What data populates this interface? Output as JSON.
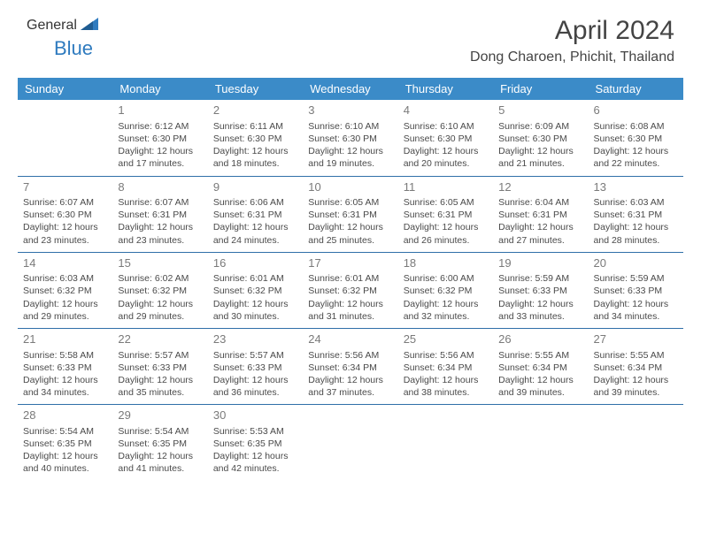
{
  "logo": {
    "text_general": "General",
    "text_blue": "Blue"
  },
  "header": {
    "month_title": "April 2024",
    "location": "Dong Charoen, Phichit, Thailand"
  },
  "colors": {
    "header_bg": "#3b8bc8",
    "header_text": "#ffffff",
    "row_border": "#2f6fa8",
    "body_text": "#4a4a4a",
    "daynum": "#7a7a7a",
    "page_bg": "#ffffff",
    "logo_general": "#5a5a5a",
    "logo_blue": "#2f7bbf"
  },
  "typography": {
    "month_title_fontsize": 30,
    "location_fontsize": 16,
    "weekday_fontsize": 13,
    "daynum_fontsize": 13,
    "cell_fontsize": 10.5
  },
  "weekdays": [
    "Sunday",
    "Monday",
    "Tuesday",
    "Wednesday",
    "Thursday",
    "Friday",
    "Saturday"
  ],
  "weeks": [
    [
      {
        "day": "",
        "sunrise": "",
        "sunset": "",
        "daylight": ""
      },
      {
        "day": "1",
        "sunrise": "Sunrise: 6:12 AM",
        "sunset": "Sunset: 6:30 PM",
        "daylight": "Daylight: 12 hours and 17 minutes."
      },
      {
        "day": "2",
        "sunrise": "Sunrise: 6:11 AM",
        "sunset": "Sunset: 6:30 PM",
        "daylight": "Daylight: 12 hours and 18 minutes."
      },
      {
        "day": "3",
        "sunrise": "Sunrise: 6:10 AM",
        "sunset": "Sunset: 6:30 PM",
        "daylight": "Daylight: 12 hours and 19 minutes."
      },
      {
        "day": "4",
        "sunrise": "Sunrise: 6:10 AM",
        "sunset": "Sunset: 6:30 PM",
        "daylight": "Daylight: 12 hours and 20 minutes."
      },
      {
        "day": "5",
        "sunrise": "Sunrise: 6:09 AM",
        "sunset": "Sunset: 6:30 PM",
        "daylight": "Daylight: 12 hours and 21 minutes."
      },
      {
        "day": "6",
        "sunrise": "Sunrise: 6:08 AM",
        "sunset": "Sunset: 6:30 PM",
        "daylight": "Daylight: 12 hours and 22 minutes."
      }
    ],
    [
      {
        "day": "7",
        "sunrise": "Sunrise: 6:07 AM",
        "sunset": "Sunset: 6:30 PM",
        "daylight": "Daylight: 12 hours and 23 minutes."
      },
      {
        "day": "8",
        "sunrise": "Sunrise: 6:07 AM",
        "sunset": "Sunset: 6:31 PM",
        "daylight": "Daylight: 12 hours and 23 minutes."
      },
      {
        "day": "9",
        "sunrise": "Sunrise: 6:06 AM",
        "sunset": "Sunset: 6:31 PM",
        "daylight": "Daylight: 12 hours and 24 minutes."
      },
      {
        "day": "10",
        "sunrise": "Sunrise: 6:05 AM",
        "sunset": "Sunset: 6:31 PM",
        "daylight": "Daylight: 12 hours and 25 minutes."
      },
      {
        "day": "11",
        "sunrise": "Sunrise: 6:05 AM",
        "sunset": "Sunset: 6:31 PM",
        "daylight": "Daylight: 12 hours and 26 minutes."
      },
      {
        "day": "12",
        "sunrise": "Sunrise: 6:04 AM",
        "sunset": "Sunset: 6:31 PM",
        "daylight": "Daylight: 12 hours and 27 minutes."
      },
      {
        "day": "13",
        "sunrise": "Sunrise: 6:03 AM",
        "sunset": "Sunset: 6:31 PM",
        "daylight": "Daylight: 12 hours and 28 minutes."
      }
    ],
    [
      {
        "day": "14",
        "sunrise": "Sunrise: 6:03 AM",
        "sunset": "Sunset: 6:32 PM",
        "daylight": "Daylight: 12 hours and 29 minutes."
      },
      {
        "day": "15",
        "sunrise": "Sunrise: 6:02 AM",
        "sunset": "Sunset: 6:32 PM",
        "daylight": "Daylight: 12 hours and 29 minutes."
      },
      {
        "day": "16",
        "sunrise": "Sunrise: 6:01 AM",
        "sunset": "Sunset: 6:32 PM",
        "daylight": "Daylight: 12 hours and 30 minutes."
      },
      {
        "day": "17",
        "sunrise": "Sunrise: 6:01 AM",
        "sunset": "Sunset: 6:32 PM",
        "daylight": "Daylight: 12 hours and 31 minutes."
      },
      {
        "day": "18",
        "sunrise": "Sunrise: 6:00 AM",
        "sunset": "Sunset: 6:32 PM",
        "daylight": "Daylight: 12 hours and 32 minutes."
      },
      {
        "day": "19",
        "sunrise": "Sunrise: 5:59 AM",
        "sunset": "Sunset: 6:33 PM",
        "daylight": "Daylight: 12 hours and 33 minutes."
      },
      {
        "day": "20",
        "sunrise": "Sunrise: 5:59 AM",
        "sunset": "Sunset: 6:33 PM",
        "daylight": "Daylight: 12 hours and 34 minutes."
      }
    ],
    [
      {
        "day": "21",
        "sunrise": "Sunrise: 5:58 AM",
        "sunset": "Sunset: 6:33 PM",
        "daylight": "Daylight: 12 hours and 34 minutes."
      },
      {
        "day": "22",
        "sunrise": "Sunrise: 5:57 AM",
        "sunset": "Sunset: 6:33 PM",
        "daylight": "Daylight: 12 hours and 35 minutes."
      },
      {
        "day": "23",
        "sunrise": "Sunrise: 5:57 AM",
        "sunset": "Sunset: 6:33 PM",
        "daylight": "Daylight: 12 hours and 36 minutes."
      },
      {
        "day": "24",
        "sunrise": "Sunrise: 5:56 AM",
        "sunset": "Sunset: 6:34 PM",
        "daylight": "Daylight: 12 hours and 37 minutes."
      },
      {
        "day": "25",
        "sunrise": "Sunrise: 5:56 AM",
        "sunset": "Sunset: 6:34 PM",
        "daylight": "Daylight: 12 hours and 38 minutes."
      },
      {
        "day": "26",
        "sunrise": "Sunrise: 5:55 AM",
        "sunset": "Sunset: 6:34 PM",
        "daylight": "Daylight: 12 hours and 39 minutes."
      },
      {
        "day": "27",
        "sunrise": "Sunrise: 5:55 AM",
        "sunset": "Sunset: 6:34 PM",
        "daylight": "Daylight: 12 hours and 39 minutes."
      }
    ],
    [
      {
        "day": "28",
        "sunrise": "Sunrise: 5:54 AM",
        "sunset": "Sunset: 6:35 PM",
        "daylight": "Daylight: 12 hours and 40 minutes."
      },
      {
        "day": "29",
        "sunrise": "Sunrise: 5:54 AM",
        "sunset": "Sunset: 6:35 PM",
        "daylight": "Daylight: 12 hours and 41 minutes."
      },
      {
        "day": "30",
        "sunrise": "Sunrise: 5:53 AM",
        "sunset": "Sunset: 6:35 PM",
        "daylight": "Daylight: 12 hours and 42 minutes."
      },
      {
        "day": "",
        "sunrise": "",
        "sunset": "",
        "daylight": ""
      },
      {
        "day": "",
        "sunrise": "",
        "sunset": "",
        "daylight": ""
      },
      {
        "day": "",
        "sunrise": "",
        "sunset": "",
        "daylight": ""
      },
      {
        "day": "",
        "sunrise": "",
        "sunset": "",
        "daylight": ""
      }
    ]
  ]
}
